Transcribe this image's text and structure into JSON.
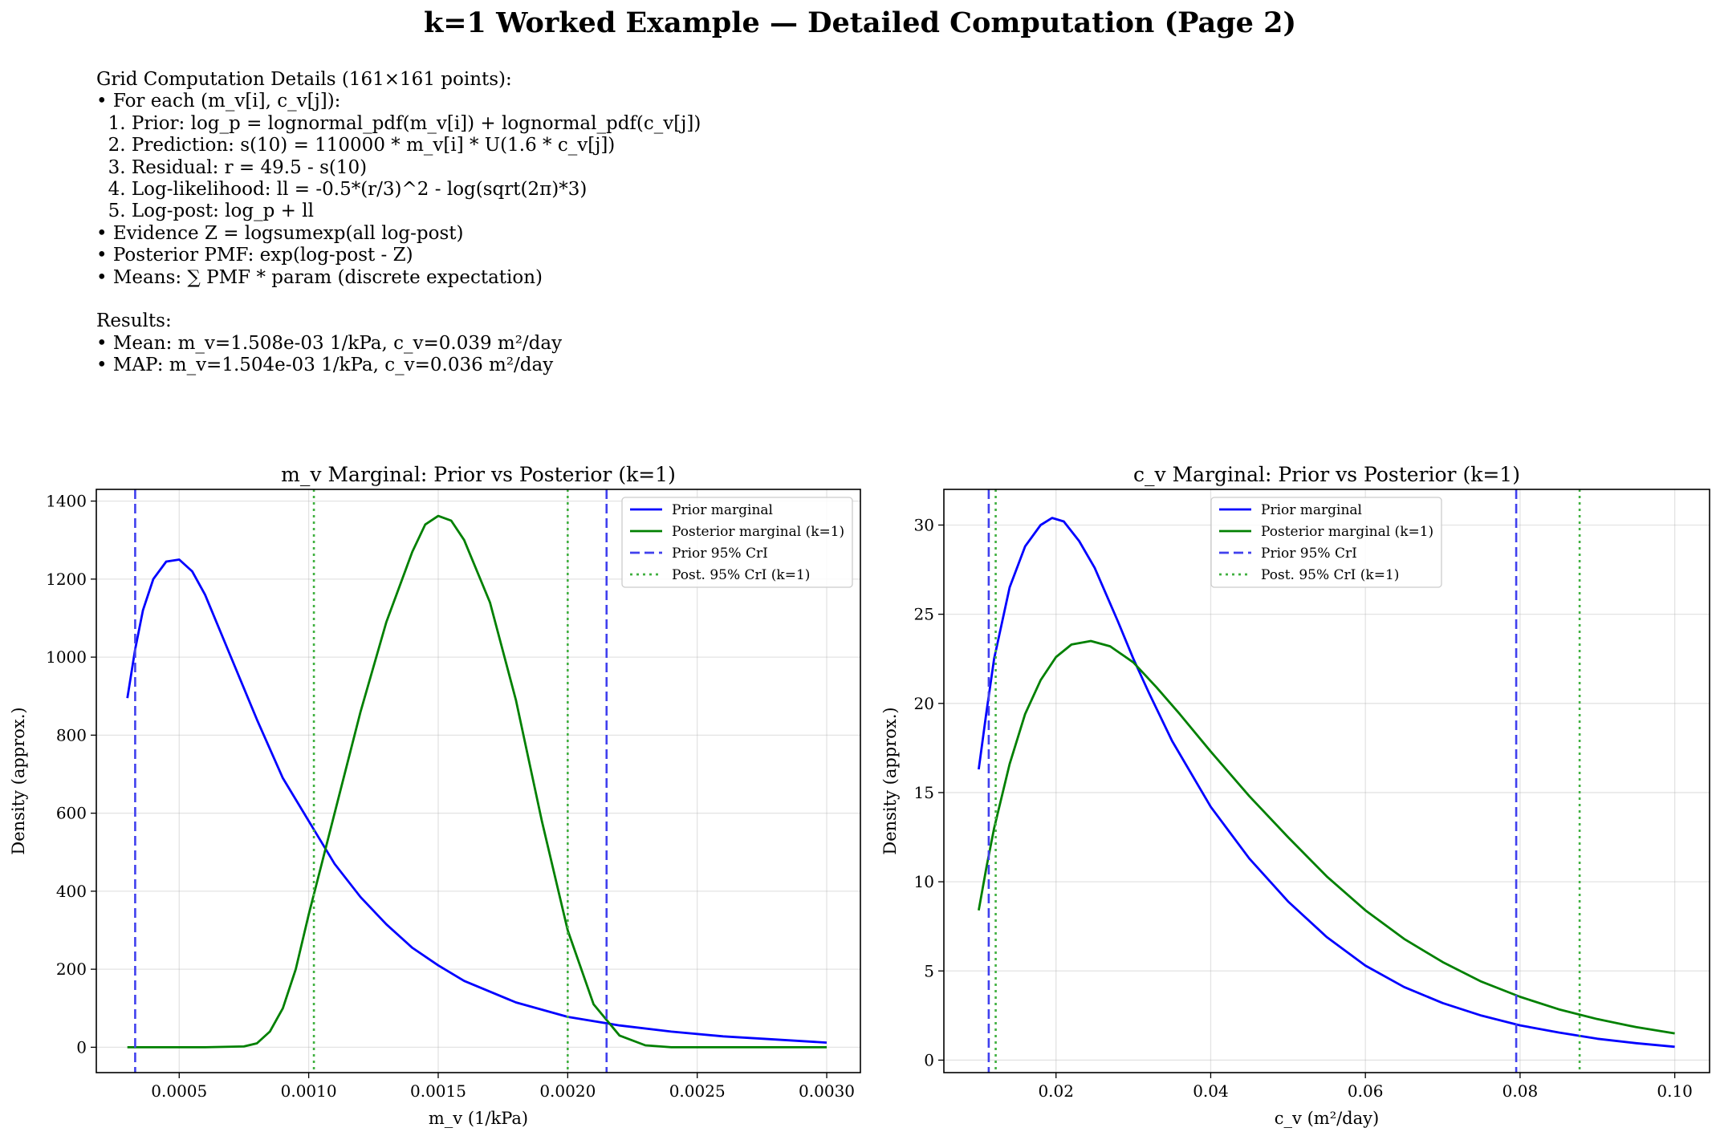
{
  "title": "k=1 Worked Example — Detailed Computation (Page 2)",
  "notes": [
    "Grid Computation Details (161×161 points):",
    "• For each (m_v[i], c_v[j]):",
    "  1. Prior: log_p = lognormal_pdf(m_v[i]) + lognormal_pdf(c_v[j])",
    "  2. Prediction: s(10) = 110000 * m_v[i] * U(1.6 * c_v[j])",
    "  3. Residual: r = 49.5 - s(10)",
    "  4. Log-likelihood: ll = -0.5*(r/3)^2 - log(sqrt(2π)*3)",
    "  5. Log-post: log_p + ll",
    "• Evidence Z = logsumexp(all log-post)",
    "• Posterior PMF: exp(log-post - Z)",
    "• Means: ∑ PMF * param (discrete expectation)",
    "",
    "Results:",
    "• Mean: m_v=1.508e-03 1/kPa, c_v=0.039 m²/day",
    "• MAP: m_v=1.504e-03 1/kPa, c_v=0.036 m²/day"
  ],
  "chart_data": [
    {
      "type": "line",
      "title": "m_v Marginal: Prior vs Posterior (k=1)",
      "xlabel": "m_v (1/kPa)",
      "ylabel": "Density (approx.)",
      "xlim": [
        0.00018,
        0.00313
      ],
      "ylim": [
        -65,
        1430
      ],
      "xticks": [
        0.0005,
        0.001,
        0.0015,
        0.002,
        0.0025,
        0.003
      ],
      "xtick_labels": [
        "0.0005",
        "0.0010",
        "0.0015",
        "0.0020",
        "0.0025",
        "0.0030"
      ],
      "yticks": [
        0,
        200,
        400,
        600,
        800,
        1000,
        1200,
        1400
      ],
      "ytick_labels": [
        "0",
        "200",
        "400",
        "600",
        "800",
        "1000",
        "1200",
        "1400"
      ],
      "grid": true,
      "legend": "top-right",
      "series": [
        {
          "name": "Prior marginal",
          "style": "solid",
          "color": "#0000ff",
          "x": [
            0.0003,
            0.00033,
            0.00036,
            0.0004,
            0.00045,
            0.0005,
            0.00055,
            0.0006,
            0.0007,
            0.0008,
            0.0009,
            0.001,
            0.0011,
            0.0012,
            0.0013,
            0.0014,
            0.0015,
            0.0016,
            0.0018,
            0.002,
            0.0022,
            0.0024,
            0.0026,
            0.0028,
            0.003
          ],
          "y": [
            895,
            1020,
            1120,
            1200,
            1245,
            1250,
            1220,
            1160,
            1000,
            840,
            690,
            580,
            470,
            385,
            315,
            255,
            210,
            170,
            115,
            78,
            56,
            40,
            28,
            20,
            12
          ]
        },
        {
          "name": "Posterior marginal (k=1)",
          "style": "solid",
          "color": "#008000",
          "x": [
            0.0003,
            0.0006,
            0.00075,
            0.0008,
            0.00085,
            0.0009,
            0.00095,
            0.001,
            0.00105,
            0.0011,
            0.0012,
            0.0013,
            0.0014,
            0.00145,
            0.0015,
            0.00155,
            0.0016,
            0.0017,
            0.0018,
            0.0019,
            0.002,
            0.0021,
            0.0022,
            0.0023,
            0.0024,
            0.0026,
            0.003
          ],
          "y": [
            0,
            0,
            2,
            10,
            40,
            100,
            200,
            340,
            470,
            600,
            860,
            1090,
            1270,
            1340,
            1362,
            1350,
            1300,
            1140,
            890,
            580,
            300,
            110,
            30,
            5,
            0,
            0,
            0
          ]
        },
        {
          "name": "Prior 95% CrI",
          "style": "dashed",
          "color": "#4040ee",
          "vlines": [
            0.00033,
            0.00215
          ]
        },
        {
          "name": "Post. 95% CrI (k=1)",
          "style": "dotted",
          "color": "#40b040",
          "vlines": [
            0.00102,
            0.002
          ]
        }
      ]
    },
    {
      "type": "line",
      "title": "c_v Marginal: Prior vs Posterior (k=1)",
      "xlabel": "c_v (m²/day)",
      "ylabel": "Density (approx.)",
      "xlim": [
        0.0055,
        0.1045
      ],
      "ylim": [
        -0.7,
        32.0
      ],
      "xticks": [
        0.02,
        0.04,
        0.06,
        0.08,
        0.1
      ],
      "xtick_labels": [
        "0.02",
        "0.04",
        "0.06",
        "0.08",
        "0.10"
      ],
      "yticks": [
        0,
        5,
        10,
        15,
        20,
        25,
        30
      ],
      "ytick_labels": [
        "0",
        "5",
        "10",
        "15",
        "20",
        "25",
        "30"
      ],
      "grid": true,
      "legend": "top-center",
      "series": [
        {
          "name": "Prior marginal",
          "style": "solid",
          "color": "#0000ff",
          "x": [
            0.01,
            0.011,
            0.012,
            0.014,
            0.016,
            0.018,
            0.0195,
            0.021,
            0.023,
            0.025,
            0.028,
            0.03,
            0.032,
            0.035,
            0.04,
            0.045,
            0.05,
            0.055,
            0.06,
            0.065,
            0.07,
            0.075,
            0.08,
            0.085,
            0.09,
            0.095,
            0.1
          ],
          "y": [
            16.3,
            19.5,
            22.5,
            26.5,
            28.8,
            30.0,
            30.4,
            30.2,
            29.1,
            27.6,
            24.6,
            22.5,
            20.6,
            17.9,
            14.2,
            11.3,
            8.9,
            6.9,
            5.3,
            4.1,
            3.2,
            2.5,
            1.95,
            1.55,
            1.2,
            0.95,
            0.75
          ]
        },
        {
          "name": "Posterior marginal (k=1)",
          "style": "solid",
          "color": "#008000",
          "x": [
            0.01,
            0.011,
            0.012,
            0.014,
            0.016,
            0.018,
            0.02,
            0.022,
            0.0245,
            0.027,
            0.03,
            0.033,
            0.036,
            0.04,
            0.045,
            0.05,
            0.055,
            0.06,
            0.065,
            0.07,
            0.075,
            0.08,
            0.085,
            0.09,
            0.095,
            0.1
          ],
          "y": [
            8.4,
            10.8,
            13.0,
            16.6,
            19.4,
            21.3,
            22.6,
            23.3,
            23.5,
            23.2,
            22.3,
            20.9,
            19.4,
            17.3,
            14.8,
            12.5,
            10.3,
            8.4,
            6.8,
            5.5,
            4.4,
            3.55,
            2.85,
            2.3,
            1.85,
            1.5
          ]
        },
        {
          "name": "Prior 95% CrI",
          "style": "dashed",
          "color": "#4040ee",
          "vlines": [
            0.0113,
            0.0795
          ]
        },
        {
          "name": "Post. 95% CrI (k=1)",
          "style": "dotted",
          "color": "#40b040",
          "vlines": [
            0.0122,
            0.0877
          ]
        }
      ]
    }
  ]
}
